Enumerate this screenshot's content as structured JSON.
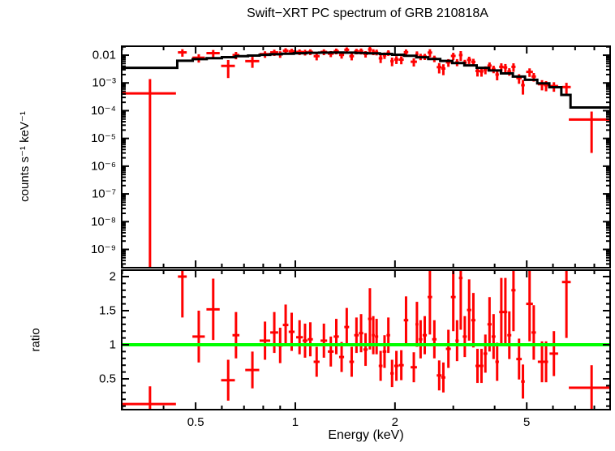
{
  "chart_data": {
    "type": "scatter",
    "title": "Swift−XRT PC spectrum of GRB 210818A",
    "xlabel": "Energy (keV)",
    "colors": {
      "data": "#ff0000",
      "model": "#000000",
      "unity_line": "#00ff00",
      "frame": "#000000",
      "background": "#ffffff"
    },
    "x_axis": {
      "scale": "log",
      "min": 0.299,
      "max": 8.93,
      "major_ticks": [
        0.5,
        1,
        2,
        5
      ],
      "major_tick_labels": [
        "0.5",
        "1",
        "2",
        "5"
      ],
      "minor_ticks": [
        0.3,
        0.4,
        0.6,
        0.7,
        0.8,
        0.9,
        3,
        4,
        6,
        7,
        8
      ]
    },
    "top_panel": {
      "ylabel": "counts s⁻¹ keV⁻¹",
      "scale": "log",
      "ymin": 2.2e-10,
      "ymax": 0.021,
      "major_ticks": [
        0.01,
        0.001,
        0.0001,
        1e-05,
        1e-06,
        1e-07,
        1e-08,
        1e-09
      ],
      "major_tick_labels": [
        "0.01",
        "10⁻³",
        "10⁻⁴",
        "10⁻⁵",
        "10⁻⁶",
        "10⁻⁷",
        "10⁻⁸",
        "10⁻⁹"
      ]
    },
    "bottom_panel": {
      "ylabel": "ratio",
      "scale": "linear",
      "ymin": 0.048,
      "ymax": 2.095,
      "major_ticks": [
        0.5,
        1,
        1.5,
        2
      ],
      "major_tick_labels": [
        "0.5",
        "1",
        "1.5",
        "2"
      ],
      "minor_tick_step": 0.1,
      "unity_line_value": 1
    },
    "model_steps_schema": [
      "energy_lo_keV",
      "energy_hi_keV",
      "model_counts_s_keV"
    ],
    "model_steps": [
      [
        0.299,
        0.44,
        0.0035
      ],
      [
        0.44,
        0.49,
        0.0063
      ],
      [
        0.49,
        0.54,
        0.0072
      ],
      [
        0.54,
        0.6,
        0.0078
      ],
      [
        0.6,
        0.66,
        0.0085
      ],
      [
        0.66,
        0.72,
        0.0092
      ],
      [
        0.72,
        0.78,
        0.0097
      ],
      [
        0.78,
        0.84,
        0.0103
      ],
      [
        0.84,
        0.91,
        0.0108
      ],
      [
        0.91,
        0.99,
        0.0113
      ],
      [
        0.99,
        1.08,
        0.0118
      ],
      [
        1.08,
        1.18,
        0.0122
      ],
      [
        1.18,
        1.28,
        0.0124
      ],
      [
        1.28,
        1.4,
        0.0125
      ],
      [
        1.4,
        1.52,
        0.0124
      ],
      [
        1.52,
        1.65,
        0.0121
      ],
      [
        1.65,
        1.8,
        0.0117
      ],
      [
        1.8,
        1.96,
        0.0111
      ],
      [
        1.96,
        2.13,
        0.0104
      ],
      [
        2.13,
        2.32,
        0.0095
      ],
      [
        2.32,
        2.52,
        0.0084
      ],
      [
        2.52,
        2.74,
        0.0073
      ],
      [
        2.74,
        2.98,
        0.0062
      ],
      [
        2.98,
        3.24,
        0.0052
      ],
      [
        3.24,
        3.53,
        0.0043
      ],
      [
        3.53,
        3.84,
        0.0035
      ],
      [
        3.84,
        4.18,
        0.0028
      ],
      [
        4.18,
        4.54,
        0.0022
      ],
      [
        4.54,
        4.94,
        0.0017
      ],
      [
        4.94,
        5.38,
        0.0013
      ],
      [
        5.38,
        5.85,
        0.00097
      ],
      [
        5.85,
        6.36,
        0.0007
      ],
      [
        6.36,
        6.78,
        0.00037
      ],
      [
        6.78,
        8.93,
        0.00013
      ]
    ],
    "points_schema": [
      "energy_keV",
      "energy_halfwidth_keV",
      "counts_s_keV",
      "counts_err",
      "ratio",
      "ratio_err"
    ],
    "points": [
      [
        0.364,
        0.072,
        0.00042,
        0.00095,
        0.13,
        0.26
      ],
      [
        0.456,
        0.014,
        0.0126,
        0.0038,
        2.0,
        0.6
      ],
      [
        0.511,
        0.022,
        0.0081,
        0.0027,
        1.12,
        0.38
      ],
      [
        0.565,
        0.026,
        0.0119,
        0.0035,
        1.52,
        0.45
      ],
      [
        0.627,
        0.03,
        0.0041,
        0.0026,
        0.48,
        0.3
      ],
      [
        0.662,
        0.016,
        0.0101,
        0.003,
        1.14,
        0.34
      ],
      [
        0.742,
        0.036,
        0.0061,
        0.0026,
        0.63,
        0.27
      ],
      [
        0.81,
        0.03,
        0.0109,
        0.0029,
        1.06,
        0.28
      ],
      [
        0.864,
        0.024,
        0.0126,
        0.0032,
        1.18,
        0.3
      ],
      [
        0.9,
        0.016,
        0.0109,
        0.0029,
        0.99,
        0.26
      ],
      [
        0.935,
        0.018,
        0.0144,
        0.0034,
        1.29,
        0.3
      ],
      [
        0.975,
        0.02,
        0.0138,
        0.0032,
        1.19,
        0.28
      ],
      [
        1.03,
        0.024,
        0.0131,
        0.003,
        1.11,
        0.25
      ],
      [
        1.07,
        0.018,
        0.0127,
        0.003,
        1.06,
        0.25
      ],
      [
        1.11,
        0.02,
        0.0132,
        0.0031,
        1.08,
        0.25
      ],
      [
        1.16,
        0.024,
        0.0092,
        0.0027,
        0.75,
        0.22
      ],
      [
        1.22,
        0.028,
        0.0131,
        0.0031,
        1.06,
        0.25
      ],
      [
        1.28,
        0.026,
        0.0113,
        0.0028,
        0.9,
        0.22
      ],
      [
        1.33,
        0.024,
        0.014,
        0.0033,
        1.12,
        0.26
      ],
      [
        1.38,
        0.024,
        0.0102,
        0.0027,
        0.82,
        0.22
      ],
      [
        1.43,
        0.024,
        0.0156,
        0.0035,
        1.26,
        0.28
      ],
      [
        1.48,
        0.024,
        0.0092,
        0.0027,
        0.75,
        0.22
      ],
      [
        1.53,
        0.024,
        0.0138,
        0.0031,
        1.14,
        0.26
      ],
      [
        1.58,
        0.024,
        0.014,
        0.0034,
        1.17,
        0.28
      ],
      [
        1.63,
        0.024,
        0.0111,
        0.0029,
        0.93,
        0.24
      ],
      [
        1.68,
        0.022,
        0.0161,
        0.0053,
        1.38,
        0.45
      ],
      [
        1.72,
        0.018,
        0.0132,
        0.0032,
        1.14,
        0.28
      ],
      [
        1.76,
        0.02,
        0.0128,
        0.003,
        1.12,
        0.26
      ],
      [
        1.81,
        0.024,
        0.0077,
        0.0025,
        0.69,
        0.22
      ],
      [
        1.86,
        0.024,
        0.0099,
        0.0026,
        0.9,
        0.24
      ],
      [
        1.91,
        0.024,
        0.0122,
        0.0028,
        1.14,
        0.26
      ],
      [
        1.96,
        0.024,
        0.0061,
        0.0021,
        0.58,
        0.2
      ],
      [
        2.02,
        0.03,
        0.007,
        0.0022,
        0.69,
        0.22
      ],
      [
        2.09,
        0.036,
        0.0069,
        0.0022,
        0.7,
        0.22
      ],
      [
        2.16,
        0.034,
        0.0128,
        0.0033,
        1.36,
        0.35
      ],
      [
        2.28,
        0.05,
        0.0058,
        0.0019,
        0.67,
        0.22
      ],
      [
        2.33,
        0.024,
        0.0109,
        0.0028,
        1.3,
        0.33
      ],
      [
        2.39,
        0.03,
        0.0089,
        0.0023,
        1.08,
        0.28
      ],
      [
        2.46,
        0.036,
        0.0089,
        0.0022,
        1.14,
        0.28
      ],
      [
        2.55,
        0.04,
        0.0124,
        0.004,
        1.7,
        0.55
      ],
      [
        2.63,
        0.04,
        0.0076,
        0.002,
        1.08,
        0.28
      ],
      [
        2.72,
        0.046,
        0.0037,
        0.0015,
        0.55,
        0.22
      ],
      [
        2.8,
        0.04,
        0.0033,
        0.0014,
        0.52,
        0.22
      ],
      [
        2.9,
        0.05,
        0.0055,
        0.0017,
        0.94,
        0.28
      ],
      [
        3.0,
        0.05,
        0.0094,
        0.0028,
        1.7,
        0.5
      ],
      [
        3.08,
        0.036,
        0.0056,
        0.0016,
        1.06,
        0.3
      ],
      [
        3.16,
        0.04,
        0.0101,
        0.0039,
        1.98,
        0.76
      ],
      [
        3.25,
        0.046,
        0.0054,
        0.0014,
        1.12,
        0.3
      ],
      [
        3.35,
        0.05,
        0.0068,
        0.002,
        1.51,
        0.45
      ],
      [
        3.45,
        0.05,
        0.0057,
        0.0017,
        1.36,
        0.4
      ],
      [
        3.55,
        0.05,
        0.0027,
        0.001,
        0.69,
        0.25
      ],
      [
        3.65,
        0.05,
        0.0026,
        0.00092,
        0.69,
        0.25
      ],
      [
        3.75,
        0.05,
        0.003,
        0.00095,
        0.87,
        0.28
      ],
      [
        3.86,
        0.056,
        0.0042,
        0.0013,
        1.3,
        0.4
      ],
      [
        3.97,
        0.054,
        0.0032,
        0.00096,
        1.12,
        0.33
      ],
      [
        4.07,
        0.05,
        0.002,
        0.00076,
        0.75,
        0.28
      ],
      [
        4.19,
        0.062,
        0.0038,
        0.0013,
        1.48,
        0.5
      ],
      [
        4.31,
        0.058,
        0.0036,
        0.0012,
        1.48,
        0.5
      ],
      [
        4.43,
        0.062,
        0.0026,
        0.00079,
        1.14,
        0.35
      ],
      [
        4.56,
        0.066,
        0.0038,
        0.0013,
        1.8,
        0.6
      ],
      [
        4.74,
        0.09,
        0.0015,
        0.00057,
        0.79,
        0.3
      ],
      [
        4.87,
        0.062,
        0.00083,
        0.00045,
        0.46,
        0.25
      ],
      [
        5.1,
        0.12,
        0.0025,
        0.00085,
        1.6,
        0.55
      ],
      [
        5.25,
        0.08,
        0.0017,
        0.00058,
        1.18,
        0.4
      ],
      [
        5.56,
        0.16,
        0.0009,
        0.00036,
        0.75,
        0.3
      ],
      [
        5.72,
        0.08,
        0.00083,
        0.00033,
        0.75,
        0.3
      ],
      [
        6.04,
        0.18,
        0.00077,
        0.00029,
        0.87,
        0.33
      ],
      [
        6.59,
        0.2,
        0.00071,
        0.0003,
        1.92,
        0.82
      ],
      [
        7.85,
        1.15,
        4.8e-05,
        4.5e-05,
        0.37,
        0.33
      ]
    ]
  }
}
